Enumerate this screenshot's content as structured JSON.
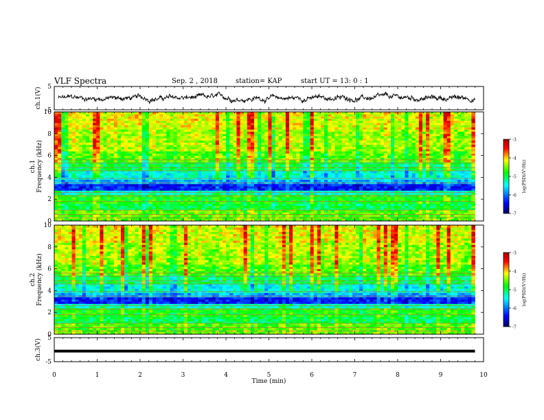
{
  "header": {
    "title": "VLF Spectra",
    "date": "Sep. 2 , 2018",
    "station": "station= KAP",
    "start_time": "start  UT =  13: 0  : 1"
  },
  "chart_data": [
    {
      "type": "line",
      "ylabel": "ch.1(V)",
      "ylim": [
        -5,
        5
      ],
      "yticks": [
        "5",
        "-5"
      ],
      "xlim": [
        0,
        10
      ],
      "note": "noisy waveform fluctuating roughly between -2 and 2 V, ending at about 9.8 min"
    },
    {
      "type": "heatmap",
      "ylabel": "ch.1\nFrequency (kHz)",
      "ylim": [
        0,
        10
      ],
      "yticks": [
        "0",
        "2",
        "4",
        "6",
        "8",
        "10"
      ],
      "xlim": [
        0,
        10
      ],
      "colorbar": {
        "label": "log(PSD)(V²/Hz)",
        "range": [
          -7,
          -3
        ],
        "ticks": [
          "-3",
          "-4",
          "-5",
          "-6",
          "-7"
        ]
      }
    },
    {
      "type": "heatmap",
      "ylabel": "ch.2\nFrequency (kHz)",
      "ylim": [
        0,
        10
      ],
      "yticks": [
        "0",
        "2",
        "4",
        "6",
        "8",
        "10"
      ],
      "xlim": [
        0,
        10
      ],
      "colorbar": {
        "label": "log(PSD)(V²/Hz)",
        "range": [
          -7,
          -3
        ],
        "ticks": [
          "-3",
          "-4",
          "-5",
          "-6",
          "-7"
        ]
      }
    },
    {
      "type": "line",
      "ylabel": "ch.3(V)",
      "ylim": [
        -5,
        5
      ],
      "yticks": [
        "5",
        "-5"
      ],
      "xlim": [
        0,
        10
      ],
      "note": "flat line at about 0 V from 0 to 9.8 min"
    }
  ],
  "xaxis": {
    "label": "Time (min)",
    "ticks": [
      "0",
      "1",
      "2",
      "3",
      "4",
      "5",
      "6",
      "7",
      "8",
      "9",
      "10"
    ]
  },
  "colors": {
    "colormap": [
      "#000070",
      "#0000ff",
      "#00ffff",
      "#00ff00",
      "#ffff00",
      "#ff0000",
      "#a00000"
    ]
  }
}
